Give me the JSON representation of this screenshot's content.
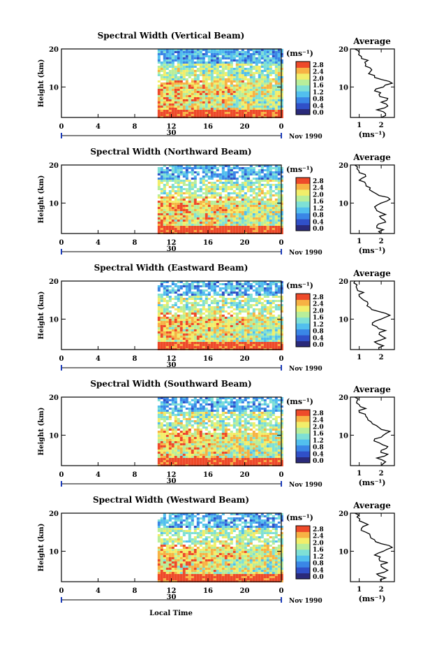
{
  "chart_data": [
    {
      "type": "heatmap",
      "title": "Spectral Width (Vertical Beam)",
      "ylabel": "Height (km)",
      "xticks": [
        "0",
        "4",
        "8",
        "12",
        "16",
        "20",
        "0"
      ],
      "yticks": [
        "20",
        "10"
      ],
      "date_marker": "30",
      "date_label": "Nov 1990",
      "colorbar_unit": "(ms⁻¹)",
      "colorbar_ticks": [
        "2.8",
        "2.4",
        "2.0",
        "1.6",
        "1.2",
        "0.8",
        "0.4",
        "0.0"
      ],
      "xlim": [
        0,
        24
      ],
      "ylim": [
        2,
        20
      ],
      "data_start_hour": 10.5,
      "profile": {
        "title": "Average",
        "xlabel": "(ms⁻¹)",
        "xticks": [
          "1",
          "2"
        ],
        "yticks": [
          "20",
          "10"
        ],
        "xlim": [
          0.6,
          2.6
        ],
        "heights": [
          2,
          3,
          4,
          5,
          6,
          7,
          8,
          9,
          10,
          11,
          12,
          13,
          14,
          15,
          16,
          17,
          18,
          19,
          20
        ],
        "values": [
          2.0,
          2.2,
          1.8,
          2.3,
          2.0,
          2.3,
          1.9,
          1.7,
          2.1,
          2.5,
          2.0,
          1.7,
          1.5,
          1.5,
          1.3,
          1.4,
          1.1,
          1.0,
          0.8
        ]
      }
    },
    {
      "type": "heatmap",
      "title": "Spectral Width (Northward Beam)",
      "ylabel": "Height (km)",
      "xticks": [
        "0",
        "4",
        "8",
        "12",
        "16",
        "20",
        "0"
      ],
      "yticks": [
        "20",
        "10"
      ],
      "date_marker": "30",
      "date_label": "Nov 1990",
      "colorbar_unit": "(ms⁻¹)",
      "colorbar_ticks": [
        "2.8",
        "2.4",
        "2.0",
        "1.6",
        "1.2",
        "0.8",
        "0.4",
        "0.0"
      ],
      "xlim": [
        0,
        24
      ],
      "ylim": [
        2,
        20
      ],
      "data_start_hour": 10.5,
      "profile": {
        "title": "Average",
        "xlabel": "(ms⁻¹)",
        "xticks": [
          "1",
          "2"
        ],
        "yticks": [
          "20",
          "10"
        ],
        "xlim": [
          0.6,
          2.6
        ],
        "heights": [
          2,
          3,
          4,
          5,
          6,
          7,
          8,
          9,
          10,
          11,
          12,
          13,
          14,
          15,
          16,
          17,
          18,
          19,
          20
        ],
        "values": [
          2.0,
          2.1,
          1.8,
          2.2,
          2.0,
          2.2,
          1.8,
          1.7,
          2.0,
          2.4,
          1.9,
          1.6,
          1.5,
          1.3,
          1.0,
          1.3,
          1.0,
          0.9,
          0.8
        ]
      }
    },
    {
      "type": "heatmap",
      "title": "Spectral Width (Eastward Beam)",
      "ylabel": "Height (km)",
      "xticks": [
        "0",
        "4",
        "8",
        "12",
        "16",
        "20",
        "0"
      ],
      "yticks": [
        "20",
        "10"
      ],
      "date_marker": "30",
      "date_label": "Nov 1990",
      "colorbar_unit": "(ms⁻¹)",
      "colorbar_ticks": [
        "2.8",
        "2.4",
        "2.0",
        "1.6",
        "1.2",
        "0.8",
        "0.4",
        "0.0"
      ],
      "xlim": [
        0,
        24
      ],
      "ylim": [
        2,
        20
      ],
      "data_start_hour": 10.5,
      "profile": {
        "title": "Average",
        "xlabel": "",
        "xticks": [
          "1",
          "2"
        ],
        "yticks": [
          "20",
          "10"
        ],
        "xlim": [
          0.6,
          2.6
        ],
        "heights": [
          2,
          3,
          4,
          5,
          6,
          7,
          8,
          9,
          10,
          11,
          12,
          13,
          14,
          15,
          16,
          17,
          18,
          19,
          20
        ],
        "values": [
          1.9,
          2.1,
          1.7,
          2.2,
          1.9,
          2.2,
          1.8,
          1.6,
          2.0,
          2.4,
          1.9,
          1.5,
          1.4,
          1.2,
          1.0,
          1.2,
          0.9,
          0.9,
          0.8
        ]
      }
    },
    {
      "type": "heatmap",
      "title": "Spectral Width (Southward Beam)",
      "ylabel": "Height (km)",
      "xticks": [
        "0",
        "4",
        "8",
        "12",
        "16",
        "20",
        "0"
      ],
      "yticks": [
        "20",
        "10"
      ],
      "date_marker": "30",
      "date_label": "Nov 1990",
      "colorbar_unit": "(ms⁻¹)",
      "colorbar_ticks": [
        "2.8",
        "2.4",
        "2.0",
        "1.6",
        "1.2",
        "0.8",
        "0.4",
        "0.0"
      ],
      "xlim": [
        0,
        24
      ],
      "ylim": [
        2,
        20
      ],
      "data_start_hour": 10.5,
      "profile": {
        "title": "Average",
        "xlabel": "(ms⁻¹)",
        "xticks": [
          "1",
          "2"
        ],
        "yticks": [
          "20",
          "10"
        ],
        "xlim": [
          0.6,
          2.6
        ],
        "heights": [
          2,
          3,
          4,
          5,
          6,
          7,
          8,
          9,
          10,
          11,
          12,
          13,
          14,
          15,
          16,
          17,
          18,
          19,
          20
        ],
        "values": [
          2.0,
          2.2,
          1.8,
          2.3,
          2.0,
          2.3,
          1.9,
          1.7,
          2.1,
          2.4,
          1.9,
          1.6,
          1.4,
          1.3,
          1.0,
          1.3,
          1.0,
          0.9,
          0.8
        ]
      }
    },
    {
      "type": "heatmap",
      "title": "Spectral Width (Westward Beam)",
      "ylabel": "Height (km)",
      "xticks": [
        "0",
        "4",
        "8",
        "12",
        "16",
        "20",
        "0"
      ],
      "yticks": [
        "20",
        "10"
      ],
      "date_marker": "30",
      "date_label": "Nov 1990",
      "colorbar_unit": "(ms⁻¹)",
      "colorbar_ticks": [
        "2.8",
        "2.4",
        "2.0",
        "1.6",
        "1.2",
        "0.8",
        "0.4",
        "0.0"
      ],
      "xlim": [
        0,
        24
      ],
      "ylim": [
        2,
        20
      ],
      "data_start_hour": 10.5,
      "profile": {
        "title": "Average",
        "xlabel": "(ms⁻¹)",
        "xticks": [
          "1",
          "2"
        ],
        "yticks": [
          "20",
          "10"
        ],
        "xlim": [
          0.6,
          2.6
        ],
        "heights": [
          2,
          3,
          4,
          5,
          6,
          7,
          8,
          9,
          10,
          11,
          12,
          13,
          14,
          15,
          16,
          17,
          18,
          19,
          20
        ],
        "values": [
          2.0,
          2.2,
          1.8,
          2.3,
          2.0,
          2.3,
          1.9,
          1.7,
          2.1,
          2.5,
          2.0,
          1.7,
          1.5,
          1.3,
          1.1,
          1.4,
          1.0,
          0.9,
          0.8
        ]
      }
    }
  ],
  "xaxis_title": "Local Time",
  "palette": [
    "#2a2a7a",
    "#3050c8",
    "#3a86e6",
    "#52bfee",
    "#7ee0d6",
    "#b8ee9a",
    "#f2ee6a",
    "#f7b244",
    "#ee4a2a"
  ]
}
